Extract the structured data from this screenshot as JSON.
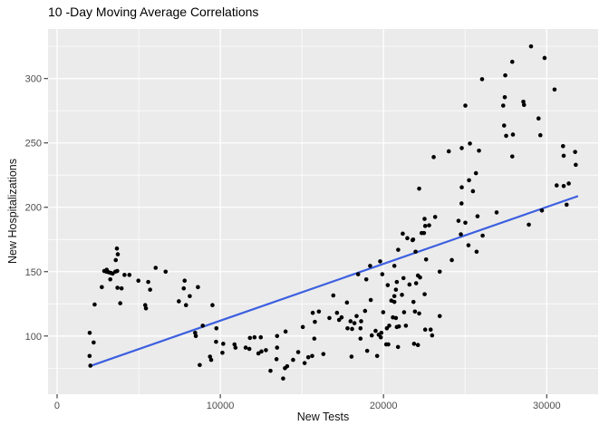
{
  "chart_data": {
    "type": "scatter",
    "title": "10 -Day Moving Average Correlations",
    "xlabel": "New Tests",
    "ylabel": "New Hospitalizations",
    "xlim": [
      -555,
      33150
    ],
    "ylim": [
      54.8,
      338.5
    ],
    "x_ticks": [
      0,
      10000,
      20000,
      30000
    ],
    "x_tick_labels": [
      "0",
      "10000",
      "20000",
      "30000"
    ],
    "y_ticks": [
      100,
      150,
      200,
      250,
      300
    ],
    "y_tick_labels": [
      "100",
      "150",
      "200",
      "250",
      "300"
    ],
    "x_minor_ticks": [
      5000,
      15000,
      25000
    ],
    "y_minor_ticks": [
      75,
      125,
      175,
      225,
      275,
      325
    ],
    "grid": "major+minor",
    "legend": "none",
    "styles": {
      "panel_bg": "#EBEBEB",
      "grid_major_color": "#FFFFFF",
      "grid_minor_color": "#FFFFFF",
      "point_color": "#000000",
      "trend_color": "#3C5FE0",
      "tick_mark_color": "#333333",
      "tick_label_color": "#4D4D4D",
      "axis_title_color": "#111111",
      "title_color": "#000000"
    },
    "trend_line": {
      "type": "linear",
      "x_start": 1983,
      "y_start": 76.5,
      "x_end": 31870,
      "y_end": 208.5
    },
    "points": [
      [
        1990,
        84.5
      ],
      [
        2000,
        102.5
      ],
      [
        2040,
        77
      ],
      [
        2240,
        95
      ],
      [
        2300,
        124.5
      ],
      [
        2740,
        138
      ],
      [
        2890,
        150.5
      ],
      [
        3020,
        150
      ],
      [
        3040,
        151.5
      ],
      [
        3165,
        149.5
      ],
      [
        3260,
        144
      ],
      [
        3295,
        149
      ],
      [
        3405,
        148.5
      ],
      [
        3570,
        150
      ],
      [
        3595,
        159
      ],
      [
        3665,
        168
      ],
      [
        3685,
        150.5
      ],
      [
        3700,
        137.5
      ],
      [
        3720,
        163.5
      ],
      [
        3870,
        125.5
      ],
      [
        3950,
        137
      ],
      [
        4130,
        147.5
      ],
      [
        4430,
        147.5
      ],
      [
        4980,
        143
      ],
      [
        5400,
        124
      ],
      [
        5445,
        121.5
      ],
      [
        5585,
        142
      ],
      [
        5700,
        136
      ],
      [
        6040,
        153
      ],
      [
        6650,
        150
      ],
      [
        7460,
        127
      ],
      [
        7760,
        137
      ],
      [
        7815,
        143
      ],
      [
        7900,
        124
      ],
      [
        8130,
        131
      ],
      [
        8460,
        102.5
      ],
      [
        8500,
        100
      ],
      [
        8630,
        138
      ],
      [
        8740,
        77.5
      ],
      [
        8925,
        108
      ],
      [
        9370,
        84
      ],
      [
        9440,
        81.5
      ],
      [
        9520,
        124
      ],
      [
        9740,
        95.5
      ],
      [
        9760,
        106
      ],
      [
        10130,
        87
      ],
      [
        10180,
        94
      ],
      [
        10870,
        93.5
      ],
      [
        10930,
        91
      ],
      [
        11555,
        91
      ],
      [
        11780,
        90
      ],
      [
        11815,
        98.5
      ],
      [
        12095,
        99
      ],
      [
        12335,
        86.5
      ],
      [
        12480,
        99
      ],
      [
        12520,
        88
      ],
      [
        12795,
        89
      ],
      [
        13075,
        73
      ],
      [
        13445,
        82
      ],
      [
        13480,
        91
      ],
      [
        13480,
        100
      ],
      [
        13850,
        67
      ],
      [
        13960,
        75
      ],
      [
        14000,
        103.5
      ],
      [
        14095,
        76.5
      ],
      [
        14460,
        81.5
      ],
      [
        14775,
        87.5
      ],
      [
        15055,
        107
      ],
      [
        15165,
        79
      ],
      [
        15390,
        83.5
      ],
      [
        15630,
        84.5
      ],
      [
        15665,
        118
      ],
      [
        15760,
        98
      ],
      [
        15795,
        111
      ],
      [
        16040,
        119
      ],
      [
        16315,
        86
      ],
      [
        16685,
        114
      ],
      [
        16925,
        131.5
      ],
      [
        17150,
        118
      ],
      [
        17280,
        112.5
      ],
      [
        17430,
        114.5
      ],
      [
        17760,
        126
      ],
      [
        17795,
        106
      ],
      [
        17980,
        111.5
      ],
      [
        18040,
        84
      ],
      [
        18075,
        105.5
      ],
      [
        18220,
        110
      ],
      [
        18350,
        115.5
      ],
      [
        18445,
        148
      ],
      [
        18590,
        98
      ],
      [
        18590,
        106
      ],
      [
        18630,
        111.5
      ],
      [
        18870,
        119.5
      ],
      [
        18945,
        144
      ],
      [
        19000,
        88.5
      ],
      [
        19180,
        154.5
      ],
      [
        19220,
        128
      ],
      [
        19280,
        100.5
      ],
      [
        19515,
        104
      ],
      [
        19610,
        84.5
      ],
      [
        19705,
        101
      ],
      [
        19795,
        158
      ],
      [
        19835,
        99
      ],
      [
        19870,
        102.5
      ],
      [
        19925,
        148
      ],
      [
        19980,
        118.5
      ],
      [
        20165,
        93.5
      ],
      [
        20205,
        106
      ],
      [
        20260,
        139.5
      ],
      [
        20295,
        93.5
      ],
      [
        20350,
        108
      ],
      [
        20480,
        127.5
      ],
      [
        20575,
        114.5
      ],
      [
        20665,
        126.5
      ],
      [
        20665,
        131
      ],
      [
        20665,
        154.5
      ],
      [
        20760,
        114
      ],
      [
        20760,
        136
      ],
      [
        20815,
        107
      ],
      [
        20815,
        142
      ],
      [
        20890,
        91.5
      ],
      [
        20900,
        167
      ],
      [
        20945,
        107.5
      ],
      [
        21130,
        132
      ],
      [
        21180,
        179.5
      ],
      [
        21225,
        145
      ],
      [
        21260,
        118.5
      ],
      [
        21370,
        108
      ],
      [
        21460,
        176
      ],
      [
        21590,
        140
      ],
      [
        21780,
        174.5
      ],
      [
        21815,
        175
      ],
      [
        21835,
        126.5
      ],
      [
        21870,
        94
      ],
      [
        21925,
        119
      ],
      [
        21965,
        165.5
      ],
      [
        22000,
        141
      ],
      [
        22110,
        93
      ],
      [
        22110,
        147
      ],
      [
        22185,
        117.5
      ],
      [
        22185,
        214.5
      ],
      [
        22240,
        145.5
      ],
      [
        22335,
        180
      ],
      [
        22480,
        180
      ],
      [
        22515,
        191
      ],
      [
        22520,
        132.5
      ],
      [
        22555,
        105
      ],
      [
        22555,
        185.5
      ],
      [
        22610,
        159.5
      ],
      [
        22795,
        186
      ],
      [
        22890,
        105
      ],
      [
        22980,
        100.5
      ],
      [
        23075,
        239
      ],
      [
        23165,
        192.5
      ],
      [
        23445,
        115.5
      ],
      [
        23445,
        150
      ],
      [
        24000,
        243.5
      ],
      [
        24185,
        159
      ],
      [
        24595,
        189.5
      ],
      [
        24740,
        179
      ],
      [
        24780,
        203
      ],
      [
        24795,
        215.5
      ],
      [
        24795,
        246
      ],
      [
        25015,
        188
      ],
      [
        25015,
        279
      ],
      [
        25205,
        170.5
      ],
      [
        25240,
        221
      ],
      [
        25295,
        249.5
      ],
      [
        25480,
        212.5
      ],
      [
        25665,
        226.5
      ],
      [
        25705,
        165.5
      ],
      [
        25760,
        193
      ],
      [
        25850,
        244
      ],
      [
        26040,
        299.5
      ],
      [
        26075,
        178
      ],
      [
        26930,
        196
      ],
      [
        27335,
        279
      ],
      [
        27390,
        263.5
      ],
      [
        27430,
        285.5
      ],
      [
        27460,
        302.5
      ],
      [
        27515,
        255.5
      ],
      [
        27890,
        239.5
      ],
      [
        27890,
        313
      ],
      [
        27930,
        256.5
      ],
      [
        28570,
        282
      ],
      [
        28610,
        279.5
      ],
      [
        28905,
        186.5
      ],
      [
        29040,
        325
      ],
      [
        29500,
        269
      ],
      [
        29610,
        256
      ],
      [
        29705,
        197.5
      ],
      [
        29870,
        316
      ],
      [
        30480,
        291.5
      ],
      [
        30610,
        217
      ],
      [
        31000,
        247.5
      ],
      [
        31040,
        216.5
      ],
      [
        31040,
        240
      ],
      [
        31220,
        202
      ],
      [
        31350,
        218.5
      ],
      [
        31740,
        243
      ],
      [
        31780,
        233
      ]
    ]
  }
}
